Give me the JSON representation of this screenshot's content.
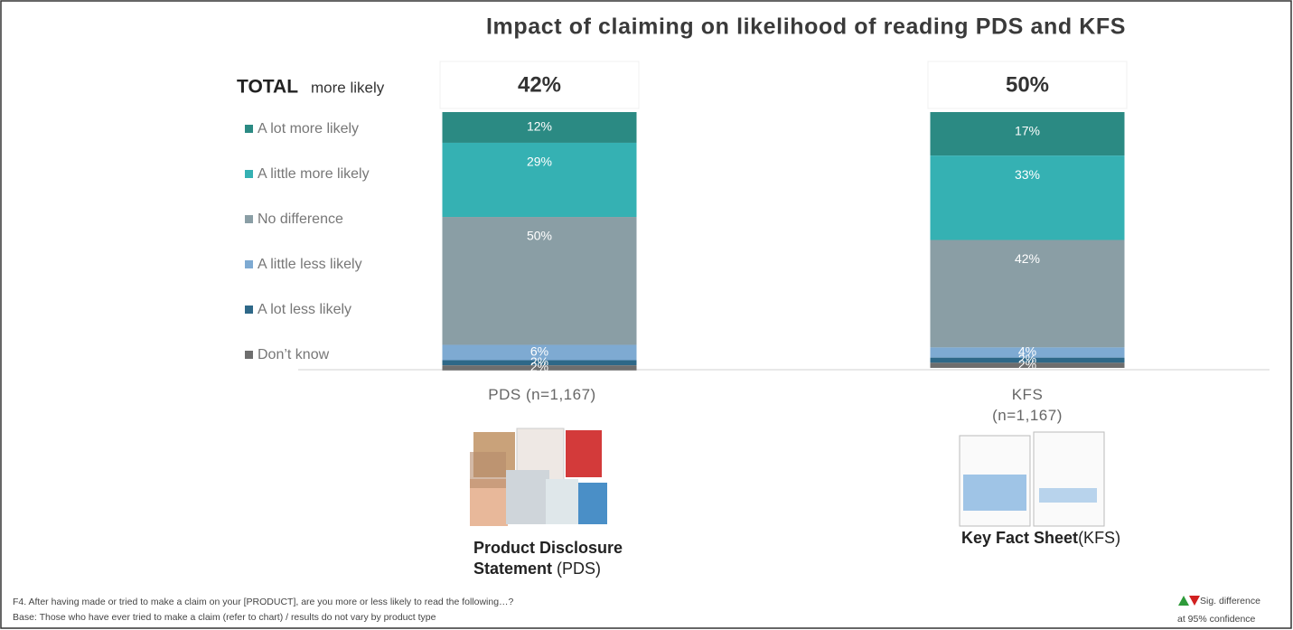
{
  "chart_data": {
    "type": "bar",
    "stacked": true,
    "title": "Impact of claiming on likelihood of reading PDS and KFS",
    "categories": [
      "PDS (n=1,167)",
      "KFS (n=1,167)"
    ],
    "series": [
      {
        "name": "A lot more likely",
        "color": "#2b8a83",
        "values": [
          12,
          17
        ],
        "value_labels": [
          "12%",
          "17%"
        ]
      },
      {
        "name": "A little more likely",
        "color": "#35b1b3",
        "values": [
          29,
          33
        ],
        "value_labels": [
          "29%",
          "33%"
        ]
      },
      {
        "name": "No difference",
        "color": "#8a9ea5",
        "values": [
          50,
          42
        ],
        "value_labels": [
          "50%",
          "42%"
        ]
      },
      {
        "name": "A little less likely",
        "color": "#7eaad2",
        "values": [
          6,
          4
        ],
        "value_labels": [
          "6%",
          "4%"
        ]
      },
      {
        "name": "A lot less likely",
        "color": "#2e6888",
        "values": [
          2,
          2
        ],
        "value_labels": [
          "2%",
          "2%"
        ]
      },
      {
        "name": "Don’t know",
        "color": "#6e6e6e",
        "values": [
          2,
          2
        ],
        "value_labels": [
          "2%",
          "2%"
        ]
      }
    ],
    "totals": {
      "label_bold": "TOTAL",
      "label": "more likely",
      "values": [
        42,
        50
      ],
      "value_labels": [
        "42%",
        "50%"
      ]
    }
  },
  "captions": [
    {
      "bold": "Product Disclosure Statement",
      "text": "(PDS)"
    },
    {
      "bold": "Key Fact Sheet",
      "text": "(KFS)"
    }
  ],
  "footnotes": [
    "F4.  After having made or tried to make a claim on your [PRODUCT], are you more or less likely to read the following…?",
    "Base: Those who have ever tried to make a claim (refer to chart) / results do not vary by product type"
  ],
  "significance": [
    "Sig. difference",
    "at 95% confidence"
  ]
}
